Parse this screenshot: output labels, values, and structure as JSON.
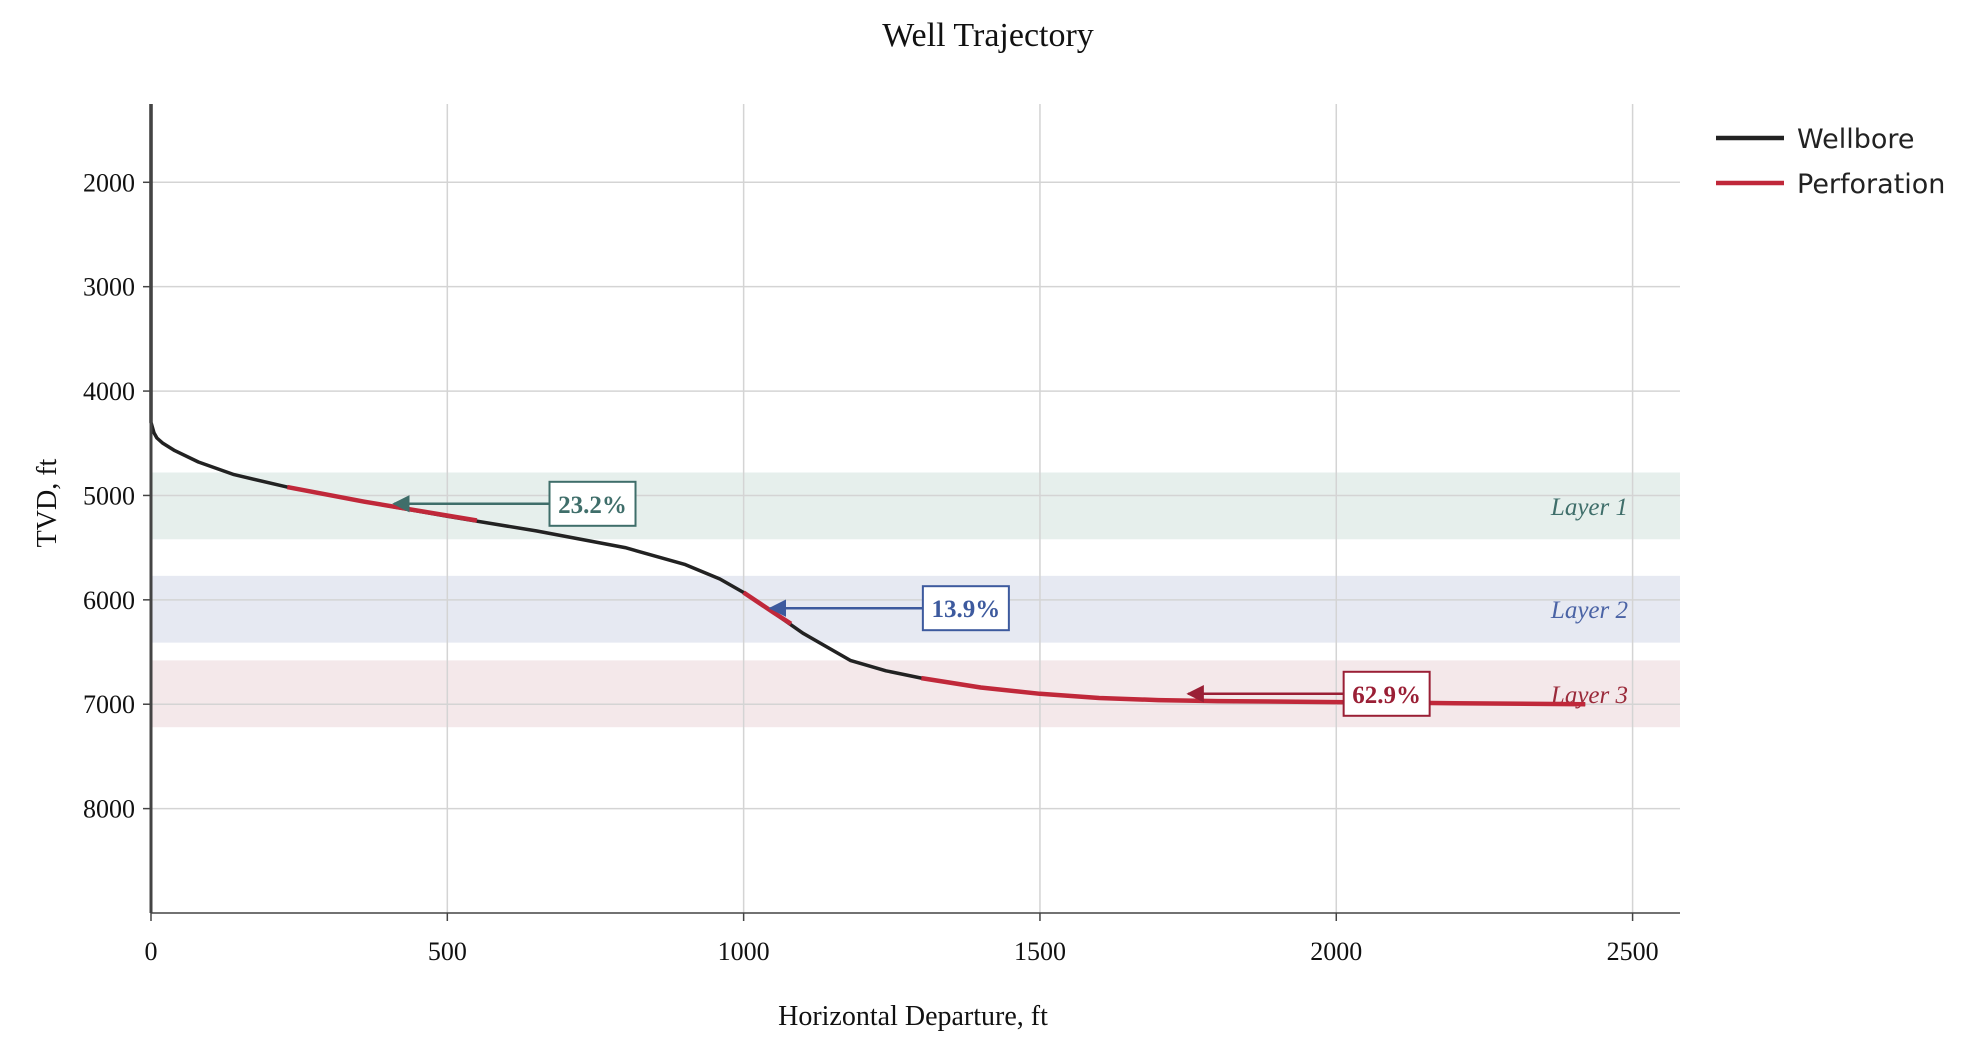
{
  "chart_data": {
    "type": "line",
    "title": "Well Trajectory",
    "xlabel": "Horizontal Departure, ft",
    "ylabel": "TVD, ft",
    "xlim": [
      0,
      2580
    ],
    "ylim": [
      1250,
      9000
    ],
    "y_inverted": true,
    "grid": true,
    "legend_position": "top-right",
    "x_ticks": [
      0,
      500,
      1000,
      1500,
      2000,
      2500
    ],
    "y_ticks": [
      2000,
      3000,
      4000,
      5000,
      6000,
      7000,
      8000
    ],
    "series": [
      {
        "name": "Wellbore",
        "color": "#222222",
        "x": [
          0,
          0,
          5,
          10,
          20,
          40,
          80,
          140,
          230,
          360,
          500,
          650,
          800,
          900,
          960,
          1000,
          1050,
          1100,
          1180,
          1240,
          1300,
          1400,
          1500,
          1600,
          1700,
          1800,
          2000,
          2200,
          2420
        ],
        "y": [
          1250,
          4300,
          4400,
          4450,
          4500,
          4570,
          4680,
          4800,
          4920,
          5060,
          5200,
          5340,
          5500,
          5660,
          5800,
          5930,
          6120,
          6320,
          6580,
          6680,
          6750,
          6840,
          6900,
          6940,
          6960,
          6970,
          6980,
          6990,
          7000
        ]
      },
      {
        "name": "Perforation",
        "color": "#c0283a",
        "segments": [
          {
            "x": [
              230,
              360,
              550
            ],
            "y": [
              4920,
              5060,
              5240
            ]
          },
          {
            "x": [
              1000,
              1050,
              1080
            ],
            "y": [
              5930,
              6120,
              6230
            ]
          },
          {
            "x": [
              1300,
              1400,
              1500,
              1600,
              1700,
              1800,
              2000,
              2200,
              2420
            ],
            "y": [
              6750,
              6840,
              6900,
              6940,
              6960,
              6970,
              6980,
              6990,
              7000
            ]
          }
        ]
      }
    ],
    "layers": [
      {
        "name": "Layer 1",
        "top": 4780,
        "bottom": 5420,
        "fill": "#e6efec",
        "text_color": "#3f6e6a"
      },
      {
        "name": "Layer 2",
        "top": 5770,
        "bottom": 6410,
        "fill": "#e6e9f2",
        "text_color": "#4a63a5"
      },
      {
        "name": "Layer 3",
        "top": 6580,
        "bottom": 7220,
        "fill": "#f4e8ea",
        "text_color": "#9a2a3a"
      }
    ],
    "annotations": [
      {
        "text": "23.2%",
        "color": "#3f6e6a",
        "box_x": 745,
        "box_y": 5080,
        "arrow_to_x": 410,
        "arrow_to_y": 5080
      },
      {
        "text": "13.9%",
        "color": "#3d5a9e",
        "box_x": 1375,
        "box_y": 6080,
        "arrow_to_x": 1045,
        "arrow_to_y": 6080
      },
      {
        "text": "62.9%",
        "color": "#9a1f35",
        "box_x": 2085,
        "box_y": 6900,
        "arrow_to_x": 1750,
        "arrow_to_y": 6900
      }
    ]
  }
}
